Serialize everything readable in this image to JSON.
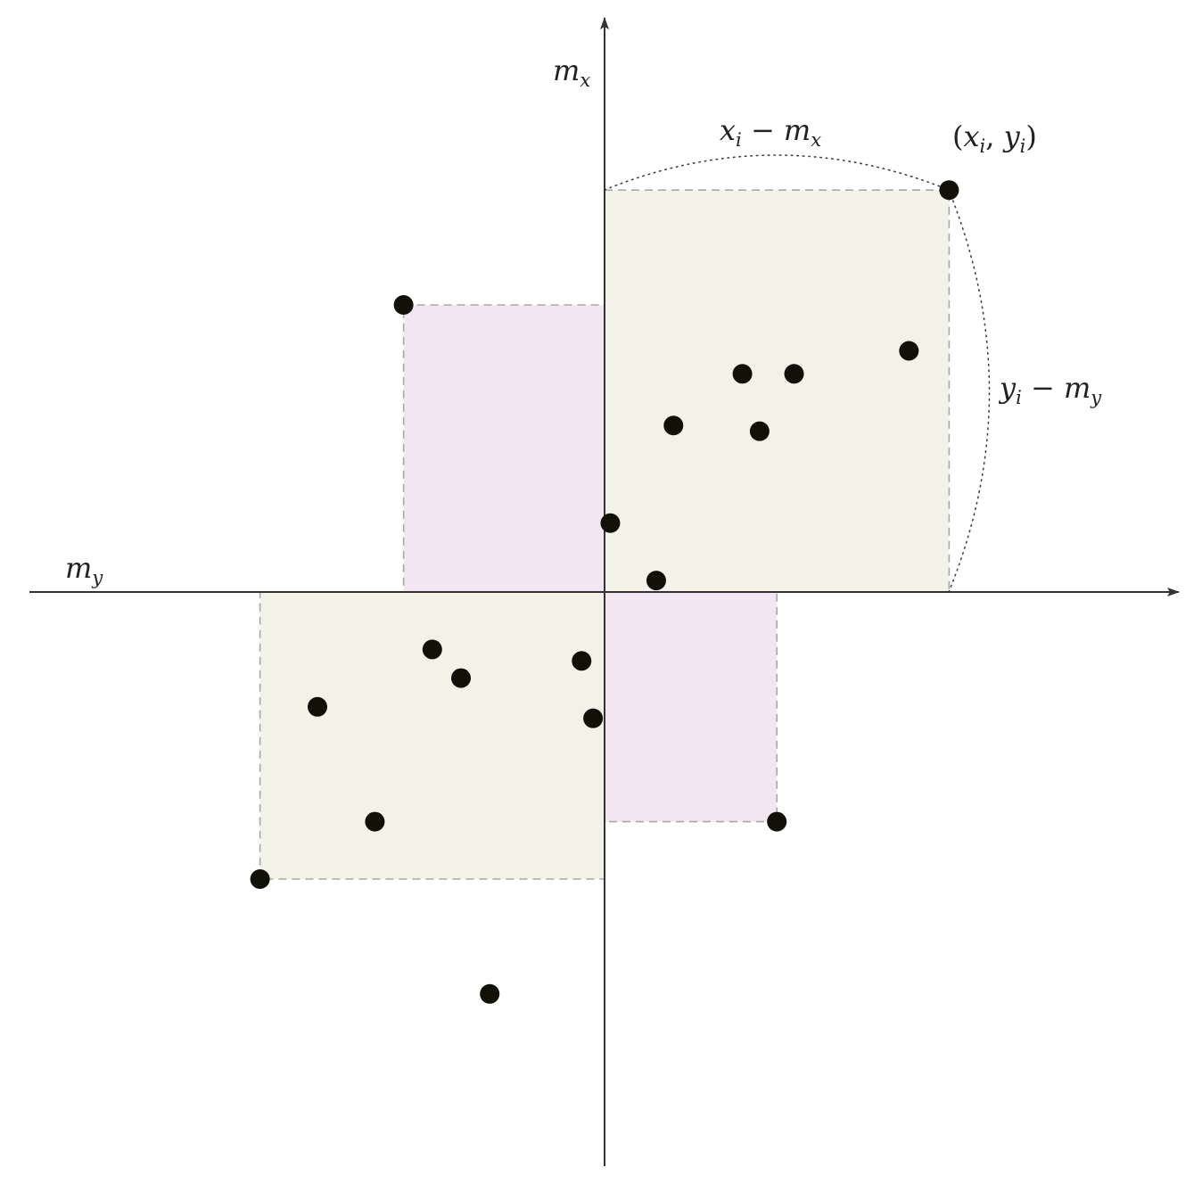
{
  "labels": {
    "y_axis": {
      "base": "m",
      "sub": "x"
    },
    "x_axis": {
      "base": "m",
      "sub": "y"
    },
    "dx": {
      "a": "x",
      "a_sub": "i",
      "op": " − ",
      "b": "m",
      "b_sub": "x"
    },
    "dy": {
      "a": "y",
      "a_sub": "i",
      "op": " − ",
      "b": "m",
      "b_sub": "y"
    },
    "point": {
      "open": "(",
      "a": "x",
      "a_sub": "i",
      "sep": ", ",
      "b": "y",
      "b_sub": "i",
      "close": ")"
    }
  },
  "colors": {
    "axis": "#333333",
    "positive_fill": "#f2f2e9",
    "negative_fill": "#f2e6f1",
    "dash": "#a8a8a8",
    "point": "#111108",
    "dotted": "#444444"
  },
  "points": [
    {
      "x": 6.0,
      "y": 7.0,
      "role": "highlighted"
    },
    {
      "x": -3.5,
      "y": 5.0,
      "role": "rect-corner"
    },
    {
      "x": 3.0,
      "y": -4.0,
      "role": "rect-corner"
    },
    {
      "x": -6.0,
      "y": -5.0,
      "role": "rect-corner"
    },
    {
      "x": 5.3,
      "y": 4.2
    },
    {
      "x": 2.4,
      "y": 3.8
    },
    {
      "x": 3.3,
      "y": 3.8
    },
    {
      "x": 1.2,
      "y": 2.9
    },
    {
      "x": 2.7,
      "y": 2.8
    },
    {
      "x": 0.1,
      "y": 1.2
    },
    {
      "x": 0.9,
      "y": 0.2
    },
    {
      "x": -3.0,
      "y": -1.0
    },
    {
      "x": -2.5,
      "y": -1.5
    },
    {
      "x": -0.4,
      "y": -1.2
    },
    {
      "x": -5.0,
      "y": -2.0
    },
    {
      "x": -0.2,
      "y": -2.2
    },
    {
      "x": -4.0,
      "y": -4.0
    },
    {
      "x": -2.0,
      "y": -7.0
    }
  ],
  "rectangles": [
    {
      "corner_x": 6.0,
      "corner_y": 7.0,
      "sign": "positive"
    },
    {
      "corner_x": -6.0,
      "corner_y": -5.0,
      "sign": "positive"
    },
    {
      "corner_x": -3.5,
      "corner_y": 5.0,
      "sign": "negative"
    },
    {
      "corner_x": 3.0,
      "corner_y": -4.0,
      "sign": "negative"
    }
  ]
}
